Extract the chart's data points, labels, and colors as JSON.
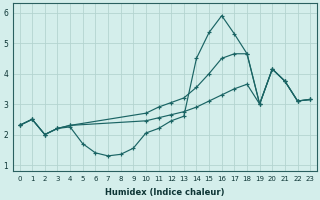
{
  "bg_color": "#d4eeeb",
  "grid_color": "#b4d4d0",
  "line_color": "#1a6464",
  "xlabel": "Humidex (Indice chaleur)",
  "xlim_min": -0.5,
  "xlim_max": 23.5,
  "ylim_min": 0.8,
  "ylim_max": 6.3,
  "xticks": [
    0,
    1,
    2,
    3,
    4,
    5,
    6,
    7,
    8,
    9,
    10,
    11,
    12,
    13,
    14,
    15,
    16,
    17,
    18,
    19,
    20,
    21,
    22,
    23
  ],
  "yticks": [
    1,
    2,
    3,
    4,
    5,
    6
  ],
  "curve1_x": [
    0,
    1,
    2,
    3,
    4,
    5,
    6,
    7,
    8,
    9,
    10,
    11,
    12,
    13,
    14,
    15,
    16,
    17,
    18,
    19,
    20,
    21,
    22,
    23
  ],
  "curve1_y": [
    2.3,
    2.5,
    2.0,
    2.2,
    2.25,
    1.7,
    1.4,
    1.3,
    1.35,
    1.55,
    2.05,
    2.2,
    2.45,
    2.6,
    4.5,
    5.35,
    5.9,
    5.3,
    4.65,
    3.0,
    4.15,
    3.75,
    3.1,
    3.15
  ],
  "curve2_x": [
    0,
    1,
    2,
    3,
    4,
    10,
    11,
    12,
    13,
    14,
    15,
    16,
    17,
    18,
    19,
    20,
    21,
    22,
    23
  ],
  "curve2_y": [
    2.3,
    2.5,
    2.0,
    2.2,
    2.3,
    2.7,
    2.9,
    3.05,
    3.2,
    3.55,
    4.0,
    4.5,
    4.65,
    4.65,
    3.0,
    4.15,
    3.75,
    3.1,
    3.15
  ],
  "curve3_x": [
    0,
    1,
    2,
    3,
    4,
    10,
    11,
    12,
    13,
    14,
    15,
    16,
    17,
    18,
    19,
    20,
    21,
    22,
    23
  ],
  "curve3_y": [
    2.3,
    2.5,
    2.0,
    2.2,
    2.3,
    2.45,
    2.55,
    2.65,
    2.75,
    2.9,
    3.1,
    3.3,
    3.5,
    3.65,
    3.0,
    4.15,
    3.75,
    3.1,
    3.15
  ]
}
